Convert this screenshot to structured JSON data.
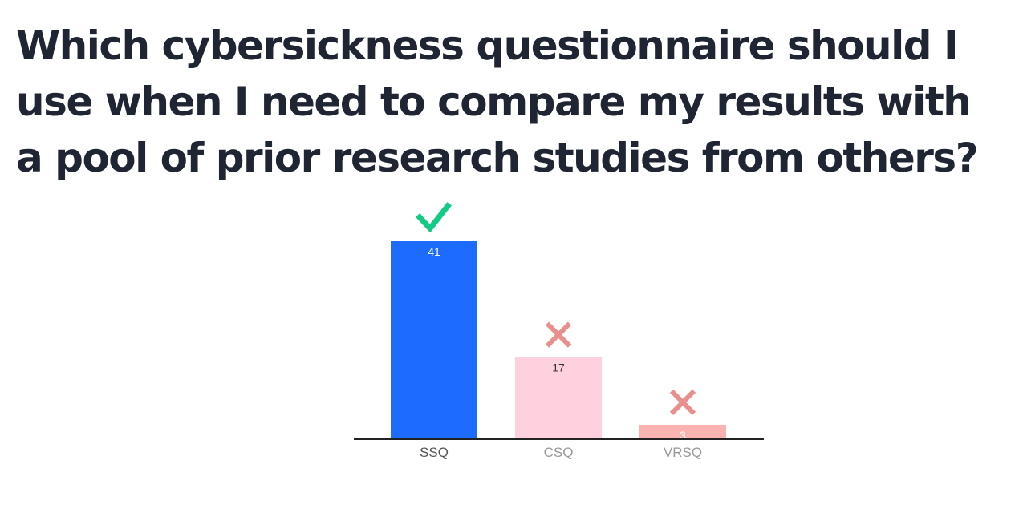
{
  "question": {
    "title": "Which cybersickness questionnaire should I use when I need to compare my results with a pool of prior research studies from others?"
  },
  "chart_data": {
    "type": "bar",
    "categories": [
      "SSQ",
      "CSQ",
      "VRSQ"
    ],
    "values": [
      41,
      17,
      3
    ],
    "ylim": [
      0,
      41
    ],
    "grid": false,
    "legend": "none",
    "correct": [
      true,
      false,
      false
    ],
    "bar_colors": [
      "#1e6bff",
      "#ffd1df",
      "#fbb3b1"
    ],
    "value_label_colors": [
      "#ffffff",
      "#333333",
      "#ffffff"
    ],
    "tick_label_colors": [
      "#555555",
      "#999999",
      "#999999"
    ],
    "markers": {
      "correct_icon": "check-icon",
      "incorrect_icon": "cross-icon",
      "correct_color": "#12cc85",
      "incorrect_color": "#e8908e"
    },
    "axis_color": "#222222"
  }
}
